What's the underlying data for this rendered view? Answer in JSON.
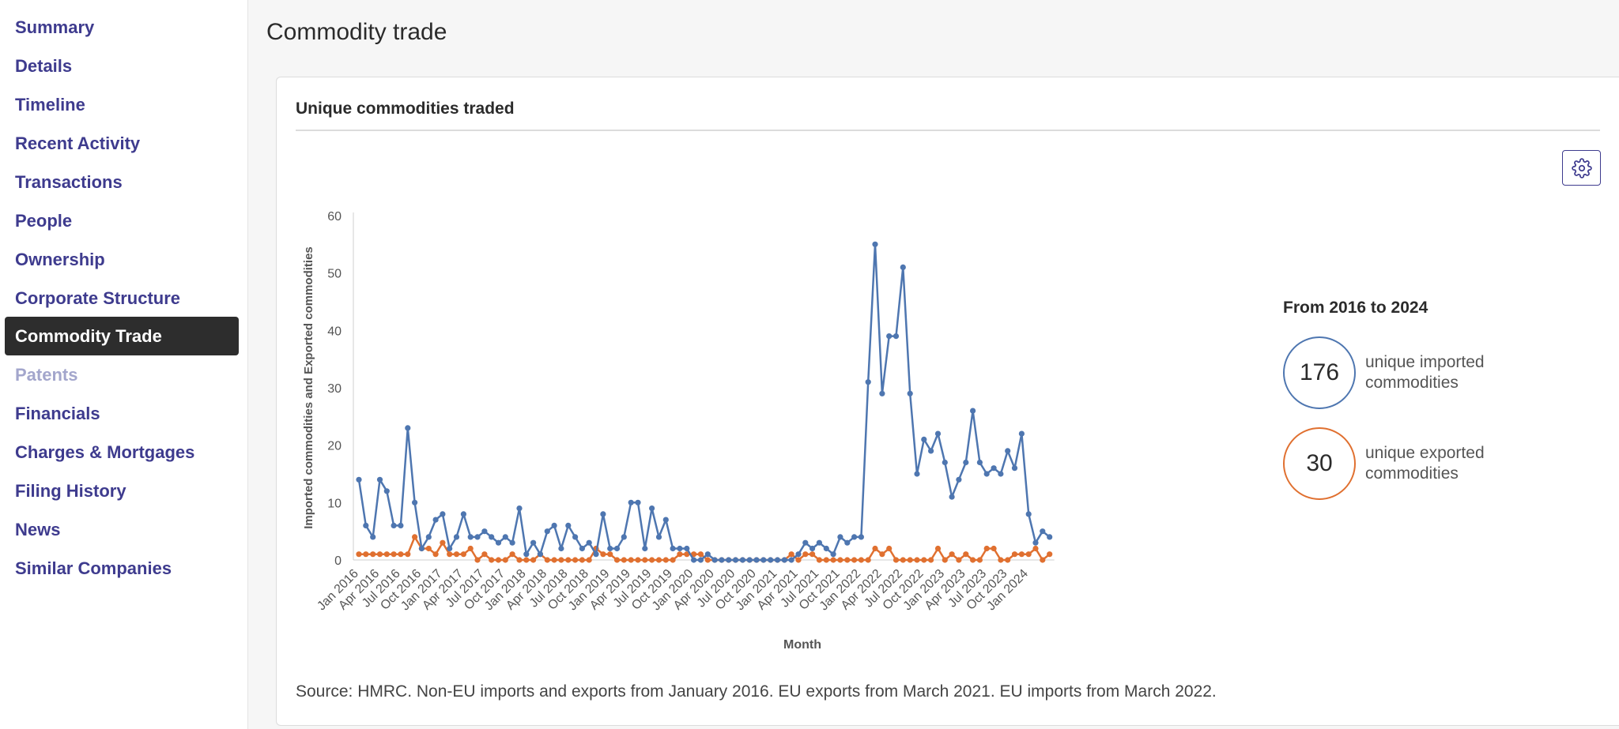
{
  "sidebar": {
    "items": [
      {
        "label": "Summary"
      },
      {
        "label": "Details"
      },
      {
        "label": "Timeline"
      },
      {
        "label": "Recent Activity"
      },
      {
        "label": "Transactions"
      },
      {
        "label": "People"
      },
      {
        "label": "Ownership"
      },
      {
        "label": "Corporate Structure"
      },
      {
        "label": "Commodity Trade",
        "active": true
      },
      {
        "label": "Patents",
        "disabled": true
      },
      {
        "label": "Financials"
      },
      {
        "label": "Charges & Mortgages"
      },
      {
        "label": "Filing History"
      },
      {
        "label": "News"
      },
      {
        "label": "Similar Companies"
      }
    ]
  },
  "page": {
    "title": "Commodity trade"
  },
  "card": {
    "title": "Unique commodities traded",
    "settings_icon": "gear-icon",
    "source": "Source: HMRC. Non-EU imports and exports from January 2016. EU exports from March 2021. EU imports from March 2022."
  },
  "summary": {
    "title": "From 2016 to 2024",
    "imported_count": "176",
    "imported_label": "unique imported commodities",
    "exported_count": "30",
    "exported_label": "unique exported commodities"
  },
  "colors": {
    "imported": "#4e76b0",
    "exported": "#e07030",
    "accent": "#3e3b8e"
  },
  "chart_data": {
    "type": "line",
    "xlabel": "Month",
    "ylabel": "Imported commodities and Exported commodities",
    "ylim": [
      0,
      60
    ],
    "yticks": [
      0,
      10,
      20,
      30,
      40,
      50,
      60
    ],
    "x_start": "Jan 2016",
    "x_tick_labels": [
      "Jan 2016",
      "Apr 2016",
      "Jul 2016",
      "Oct 2016",
      "Jan 2017",
      "Apr 2017",
      "Jul 2017",
      "Oct 2017",
      "Jan 2018",
      "Apr 2018",
      "Jul 2018",
      "Oct 2018",
      "Jan 2019",
      "Apr 2019",
      "Jul 2019",
      "Oct 2019",
      "Jan 2020",
      "Apr 2020",
      "Jul 2020",
      "Oct 2020",
      "Jan 2021",
      "Apr 2021",
      "Jul 2021",
      "Oct 2021",
      "Jan 2022",
      "Apr 2022",
      "Jul 2022",
      "Oct 2022",
      "Jan 2023",
      "Apr 2023",
      "Jul 2023",
      "Oct 2023",
      "Jan 2024"
    ],
    "grid": false,
    "series": [
      {
        "color": "#4e76b0",
        "values": [
          14,
          6,
          4,
          14,
          12,
          6,
          6,
          23,
          10,
          2,
          4,
          7,
          8,
          2,
          4,
          8,
          4,
          4,
          5,
          4,
          3,
          4,
          3,
          9,
          1,
          3,
          1,
          5,
          6,
          2,
          6,
          4,
          2,
          3,
          1,
          8,
          2,
          2,
          4,
          10,
          10,
          2,
          9,
          4,
          7,
          2,
          2,
          2,
          0,
          0,
          1,
          0,
          0,
          0,
          0,
          0,
          0,
          0,
          0,
          0,
          0,
          0,
          0,
          1,
          3,
          2,
          3,
          2,
          1,
          4,
          3,
          4,
          4,
          31,
          55,
          29,
          39,
          39,
          51,
          29,
          15,
          21,
          19,
          22,
          17,
          11,
          14,
          17,
          26,
          17,
          15,
          16,
          15,
          19,
          16,
          22,
          8,
          3,
          5,
          4
        ]
      },
      {
        "color": "#e07030",
        "values": [
          1,
          1,
          1,
          1,
          1,
          1,
          1,
          1,
          4,
          2,
          2,
          1,
          3,
          1,
          1,
          1,
          2,
          0,
          1,
          0,
          0,
          0,
          1,
          0,
          0,
          0,
          1,
          0,
          0,
          0,
          0,
          0,
          0,
          0,
          2,
          1,
          1,
          0,
          0,
          0,
          0,
          0,
          0,
          0,
          0,
          0,
          1,
          1,
          1,
          1,
          0,
          0,
          0,
          0,
          0,
          0,
          0,
          0,
          0,
          0,
          0,
          0,
          1,
          0,
          1,
          1,
          0,
          0,
          0,
          0,
          0,
          0,
          0,
          0,
          2,
          1,
          2,
          0,
          0,
          0,
          0,
          0,
          0,
          2,
          0,
          1,
          0,
          1,
          0,
          0,
          2,
          2,
          0,
          0,
          1,
          1,
          1,
          2,
          0,
          1
        ]
      }
    ]
  }
}
